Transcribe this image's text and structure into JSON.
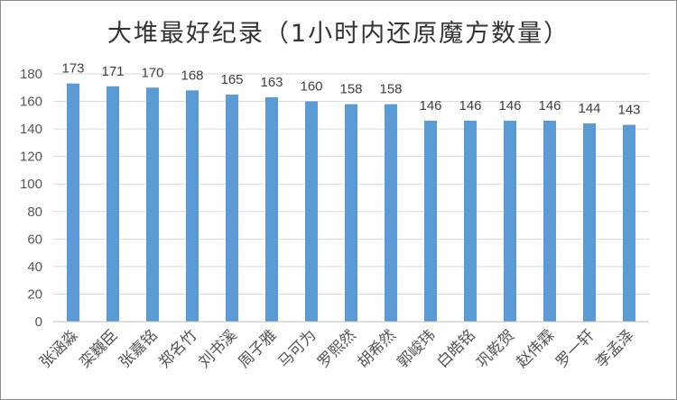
{
  "chart_data": {
    "type": "bar",
    "title": "大堆最好纪录（1小时内还原魔方数量）",
    "categories": [
      "张涵淼",
      "栾巍臣",
      "张嘉铭",
      "郑名竹",
      "刘书溪",
      "周子雅",
      "马可为",
      "罗熙然",
      "胡希然",
      "郭峻玮",
      "白皓铭",
      "巩乾贺",
      "赵伟霖",
      "罗一轩",
      "李孟泽"
    ],
    "values": [
      173,
      171,
      170,
      168,
      165,
      163,
      160,
      158,
      158,
      146,
      146,
      146,
      146,
      144,
      143
    ],
    "xlabel": "",
    "ylabel": "",
    "ylim": [
      0,
      180
    ],
    "yticks": [
      0,
      20,
      40,
      60,
      80,
      100,
      120,
      140,
      160,
      180
    ],
    "grid": true,
    "legend": "none",
    "bar_color": "#5b9bd5"
  }
}
